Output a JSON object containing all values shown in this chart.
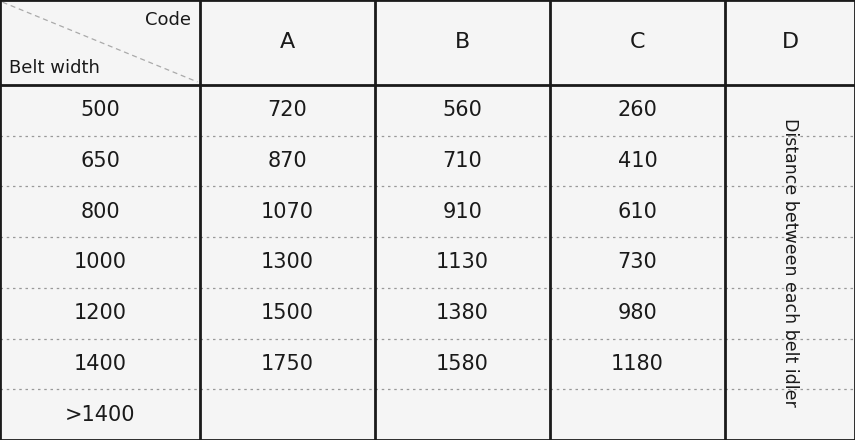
{
  "background_color": "#f0f0f0",
  "table_bg": "#f5f5f5",
  "border_color": "#1a1a1a",
  "dotted_color": "#999999",
  "header_row": [
    "Code",
    "A",
    "B",
    "C",
    "D"
  ],
  "header_row2": "Belt width",
  "rows": [
    [
      "500",
      "720",
      "560",
      "260"
    ],
    [
      "650",
      "870",
      "710",
      "410"
    ],
    [
      "800",
      "1070",
      "910",
      "610"
    ],
    [
      "1000",
      "1300",
      "1130",
      "730"
    ],
    [
      "1200",
      "1500",
      "1380",
      "980"
    ],
    [
      "1400",
      "1750",
      "1580",
      "1180"
    ],
    [
      ">1400",
      "",
      "",
      ""
    ]
  ],
  "d_label": "Distance between each belt idler",
  "fig_width": 8.55,
  "fig_height": 4.4,
  "font_size": 15,
  "header_font_size": 13,
  "d_font_size": 12.5,
  "thick_lw": 2.0,
  "dot_lw": 0.9
}
